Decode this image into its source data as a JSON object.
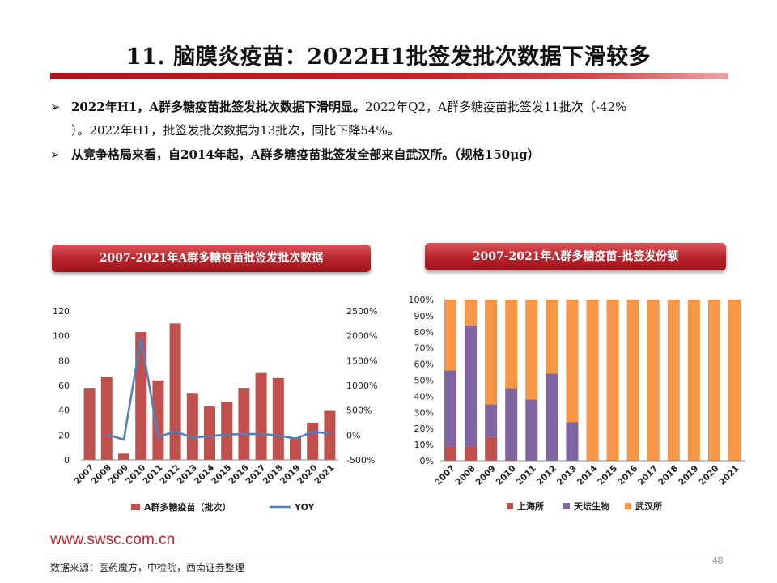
{
  "page": {
    "title": "11. 脑膜炎疫苗：2022H1批签发批次数据下滑较多",
    "bullets": [
      {
        "mark": "➢",
        "bold": "2022年H1，A群多糖疫苗批签发批次数据下滑明显。",
        "normal": "2022年Q2，A群多糖疫苗批签发11批次（-42%",
        "cont": "）。2022年H1，批签发批次数据为13批次，同比下降54%。"
      },
      {
        "mark": "➢",
        "bold": "从竞争格局来看，自2014年起，A群多糖疫苗批签发全部来自武汉所。（规格150μg）",
        "normal": "",
        "cont": ""
      }
    ],
    "footer_url": "www.swsc.com.cn",
    "page_number": "48",
    "source": "数据来源：医药魔方，中检院，西南证券整理"
  },
  "chart_data": [
    {
      "type": "bar",
      "title": "2007-2021年A群多糖疫苗批签发批次数据",
      "categories": [
        "2007",
        "2008",
        "2009",
        "2010",
        "2011",
        "2012",
        "2013",
        "2014",
        "2015",
        "2016",
        "2017",
        "2018",
        "2019",
        "2020",
        "2021"
      ],
      "series": [
        {
          "name": "A群多糖疫苗（批次）",
          "type": "bar",
          "axis": "left",
          "values": [
            58,
            67,
            5,
            103,
            64,
            110,
            54,
            43,
            47,
            58,
            70,
            66,
            18,
            30,
            40
          ]
        },
        {
          "name": "YOY",
          "type": "line",
          "axis": "right",
          "values": [
            null,
            16,
            -93,
            1960,
            -38,
            72,
            -51,
            -20,
            9,
            23,
            21,
            -6,
            -73,
            67,
            33
          ]
        }
      ],
      "y_left": {
        "min": 0,
        "max": 120,
        "ticks": [
          0,
          20,
          40,
          60,
          80,
          100,
          120
        ],
        "tick_labels": [
          "0",
          "20",
          "40",
          "60",
          "80",
          "100",
          "120"
        ]
      },
      "y_right": {
        "min": -500,
        "max": 2500,
        "ticks": [
          -500,
          0,
          500,
          1000,
          1500,
          2000,
          2500
        ],
        "tick_labels": [
          "-500%",
          "0%",
          "500%",
          "1000%",
          "1500%",
          "2000%",
          "2500%"
        ]
      },
      "legend_position": "bottom",
      "grid": false,
      "colors": {
        "bar": "#c0504d",
        "line": "#4f81bd"
      }
    },
    {
      "type": "bar",
      "stacked": true,
      "title": "2007-2021年A群多糖疫苗-批签发份额",
      "categories": [
        "2007",
        "2008",
        "2009",
        "2010",
        "2011",
        "2012",
        "2013",
        "2014",
        "2015",
        "2016",
        "2017",
        "2018",
        "2019",
        "2020",
        "2021"
      ],
      "series": [
        {
          "name": "上海所",
          "values": [
            9,
            9,
            15,
            1,
            0,
            0,
            0,
            0,
            0,
            0,
            0,
            0,
            0,
            0,
            0
          ]
        },
        {
          "name": "天坛生物",
          "values": [
            47,
            75,
            20,
            44,
            38,
            54,
            24,
            0,
            0,
            0,
            0,
            0,
            0,
            0,
            0
          ]
        },
        {
          "name": "武汉所",
          "values": [
            44,
            16,
            65,
            55,
            62,
            46,
            76,
            100,
            100,
            100,
            100,
            100,
            100,
            100,
            100
          ]
        }
      ],
      "y": {
        "min": 0,
        "max": 100,
        "ticks": [
          0,
          10,
          20,
          30,
          40,
          50,
          60,
          70,
          80,
          90,
          100
        ],
        "tick_labels": [
          "0%",
          "10%",
          "20%",
          "30%",
          "40%",
          "50%",
          "60%",
          "70%",
          "80%",
          "90%",
          "100%"
        ]
      },
      "legend_position": "bottom",
      "grid": false,
      "colors": {
        "上海所": "#c0504d",
        "天坛生物": "#8064a2",
        "武汉所": "#f79646"
      }
    }
  ]
}
